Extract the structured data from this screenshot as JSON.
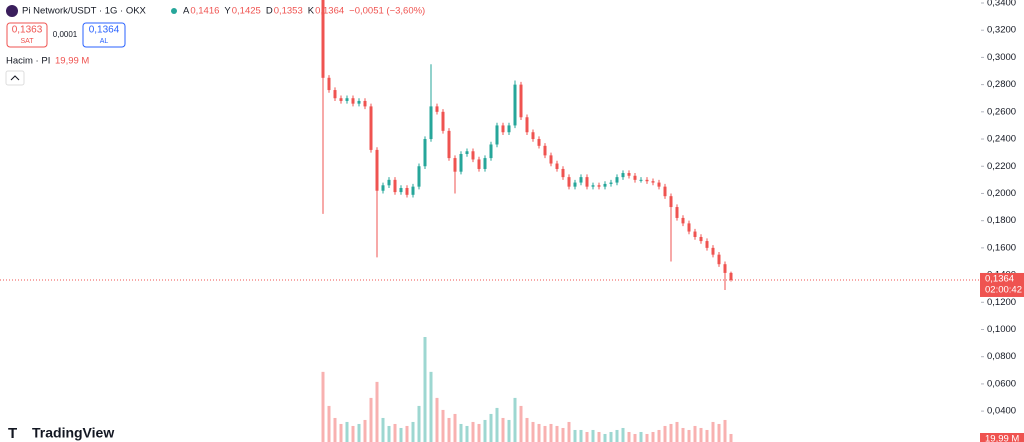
{
  "header": {
    "title": "Pi Network/USDT · 1G · OKX",
    "ohlc": [
      {
        "key": "A",
        "text": "0,1416"
      },
      {
        "key": "Y",
        "text": "0,1425"
      },
      {
        "key": "D",
        "text": "0,1353"
      },
      {
        "key": "K",
        "text": "0,1364"
      }
    ],
    "change": "−0,0051 (−3,60%)",
    "sell": {
      "price": "0,1363",
      "label": "SAT"
    },
    "spread": "0,0001",
    "buy": {
      "price": "0,1364",
      "label": "AL"
    },
    "volume_legend": {
      "label": "Hacim · PI",
      "value": "19,99 M"
    },
    "brand": "TradingView"
  },
  "chart_data": {
    "type": "candlestick",
    "up_color": "#26a69a",
    "down_color": "#ef5350",
    "ylim": [
      0.0173,
      0.3422
    ],
    "yticks": [
      {
        "value": 0.34,
        "label": "0,3400"
      },
      {
        "value": 0.32,
        "label": "0,3200"
      },
      {
        "value": 0.3,
        "label": "0,3000"
      },
      {
        "value": 0.28,
        "label": "0,2800"
      },
      {
        "value": 0.26,
        "label": "0,2600"
      },
      {
        "value": 0.24,
        "label": "0,2400"
      },
      {
        "value": 0.22,
        "label": "0,2200"
      },
      {
        "value": 0.2,
        "label": "0,2000"
      },
      {
        "value": 0.18,
        "label": "0,1800"
      },
      {
        "value": 0.16,
        "label": "0,1600"
      },
      {
        "value": 0.14,
        "label": "0,1400"
      },
      {
        "value": 0.12,
        "label": "0,1200"
      },
      {
        "value": 0.1,
        "label": "0,1000"
      },
      {
        "value": 0.08,
        "label": "0,0800"
      },
      {
        "value": 0.06,
        "label": "0,0600"
      },
      {
        "value": 0.04,
        "label": "0,0400"
      }
    ],
    "open": [
      0.345,
      0.285,
      0.276,
      0.27,
      0.268,
      0.27,
      0.266,
      0.268,
      0.264,
      0.232,
      0.202,
      0.206,
      0.21,
      0.201,
      0.204,
      0.199,
      0.205,
      0.22,
      0.24,
      0.264,
      0.26,
      0.246,
      0.226,
      0.216,
      0.229,
      0.231,
      0.225,
      0.218,
      0.226,
      0.236,
      0.25,
      0.245,
      0.25,
      0.28,
      0.256,
      0.245,
      0.24,
      0.235,
      0.228,
      0.222,
      0.218,
      0.212,
      0.205,
      0.208,
      0.212,
      0.205,
      0.206,
      0.205,
      0.207,
      0.208,
      0.212,
      0.215,
      0.213,
      0.21,
      0.21,
      0.209,
      0.208,
      0.205,
      0.198,
      0.19,
      0.182,
      0.178,
      0.172,
      0.168,
      0.165,
      0.16,
      0.155,
      0.148,
      0.1416
    ],
    "high": [
      0.35,
      0.287,
      0.278,
      0.272,
      0.272,
      0.272,
      0.27,
      0.27,
      0.266,
      0.234,
      0.208,
      0.212,
      0.212,
      0.206,
      0.206,
      0.207,
      0.222,
      0.242,
      0.295,
      0.266,
      0.262,
      0.248,
      0.228,
      0.231,
      0.233,
      0.233,
      0.227,
      0.228,
      0.238,
      0.252,
      0.252,
      0.252,
      0.283,
      0.282,
      0.258,
      0.247,
      0.242,
      0.237,
      0.23,
      0.224,
      0.22,
      0.214,
      0.21,
      0.214,
      0.214,
      0.208,
      0.208,
      0.209,
      0.21,
      0.214,
      0.217,
      0.217,
      0.215,
      0.212,
      0.212,
      0.211,
      0.21,
      0.207,
      0.2,
      0.192,
      0.184,
      0.18,
      0.174,
      0.17,
      0.167,
      0.162,
      0.157,
      0.15,
      0.1425
    ],
    "low": [
      0.185,
      0.274,
      0.268,
      0.266,
      0.266,
      0.264,
      0.264,
      0.262,
      0.23,
      0.153,
      0.2,
      0.204,
      0.199,
      0.199,
      0.197,
      0.197,
      0.203,
      0.218,
      0.238,
      0.258,
      0.244,
      0.224,
      0.2,
      0.214,
      0.227,
      0.223,
      0.216,
      0.216,
      0.224,
      0.234,
      0.243,
      0.243,
      0.248,
      0.254,
      0.243,
      0.238,
      0.233,
      0.226,
      0.22,
      0.216,
      0.21,
      0.203,
      0.203,
      0.206,
      0.203,
      0.203,
      0.203,
      0.203,
      0.205,
      0.206,
      0.21,
      0.211,
      0.208,
      0.208,
      0.207,
      0.206,
      0.203,
      0.196,
      0.15,
      0.18,
      0.176,
      0.17,
      0.166,
      0.163,
      0.158,
      0.153,
      0.146,
      0.129,
      0.1353
    ],
    "close": [
      0.285,
      0.276,
      0.27,
      0.268,
      0.27,
      0.266,
      0.268,
      0.264,
      0.232,
      0.202,
      0.206,
      0.21,
      0.201,
      0.204,
      0.199,
      0.205,
      0.22,
      0.24,
      0.264,
      0.26,
      0.246,
      0.226,
      0.216,
      0.229,
      0.231,
      0.225,
      0.218,
      0.226,
      0.236,
      0.25,
      0.245,
      0.25,
      0.28,
      0.256,
      0.245,
      0.24,
      0.235,
      0.228,
      0.222,
      0.218,
      0.212,
      0.205,
      0.208,
      0.212,
      0.205,
      0.206,
      0.205,
      0.207,
      0.208,
      0.212,
      0.215,
      0.213,
      0.21,
      0.21,
      0.209,
      0.208,
      0.205,
      0.198,
      0.19,
      0.182,
      0.178,
      0.172,
      0.168,
      0.165,
      0.16,
      0.155,
      0.148,
      0.1416,
      0.1364
    ],
    "volume": [
      175,
      90,
      60,
      45,
      50,
      40,
      45,
      55,
      110,
      150,
      60,
      40,
      45,
      35,
      40,
      50,
      90,
      262,
      175,
      110,
      80,
      60,
      70,
      45,
      40,
      50,
      45,
      55,
      70,
      85,
      60,
      55,
      110,
      90,
      60,
      50,
      45,
      40,
      45,
      40,
      35,
      50,
      30,
      30,
      25,
      30,
      25,
      20,
      25,
      30,
      35,
      25,
      20,
      25,
      20,
      25,
      30,
      40,
      45,
      50,
      35,
      30,
      40,
      35,
      30,
      50,
      45,
      55,
      19.99
    ],
    "last_price": {
      "value": 0.1364,
      "label": "0,1364",
      "countdown": "02:00:42"
    },
    "volume_label": "19,99 M"
  }
}
